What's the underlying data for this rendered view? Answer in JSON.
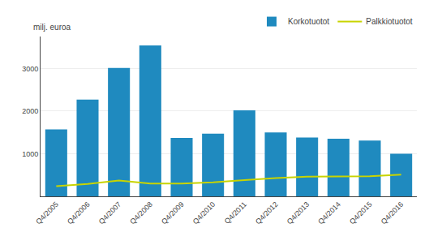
{
  "chart_data": {
    "type": "bar",
    "ylabel": "milj. euroa",
    "categories": [
      "Q4/2005",
      "Q4/2006",
      "Q4/2007",
      "Q4/2008",
      "Q4/2009",
      "Q4/2010",
      "Q4/2011",
      "Q4/2012",
      "Q4/2013",
      "Q4/2014",
      "Q4/2015",
      "Q4/2016"
    ],
    "series": [
      {
        "name": "Korkotuotot",
        "type": "bar",
        "color": "#1f8abf",
        "values": [
          1570,
          2270,
          3010,
          3540,
          1370,
          1470,
          2020,
          1500,
          1380,
          1350,
          1310,
          1000
        ]
      },
      {
        "name": "Palkkiotuotot",
        "type": "line",
        "color": "#c8d400",
        "values": [
          240,
          290,
          370,
          300,
          300,
          330,
          380,
          430,
          460,
          470,
          470,
          510
        ]
      }
    ],
    "ylim": [
      0,
      3750
    ],
    "yticks": [
      1000,
      2000,
      3000
    ],
    "grid": true,
    "legend": "upper right"
  }
}
